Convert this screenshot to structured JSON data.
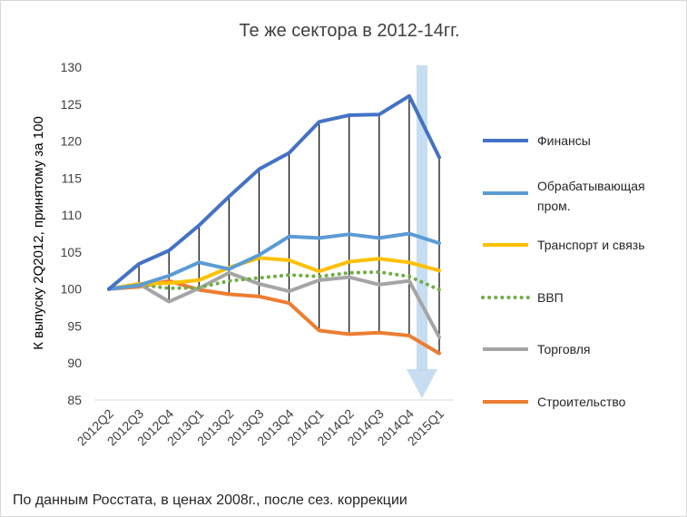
{
  "chart_data": {
    "type": "line",
    "title": "Те же сектора в 2012-14гг.",
    "ylabel": "К выпуску 2Q2012, принятому за 100",
    "xlabel": "",
    "ylim": [
      85,
      130
    ],
    "yticks": [
      85,
      90,
      95,
      100,
      105,
      110,
      115,
      120,
      125,
      130
    ],
    "categories": [
      "2012Q2",
      "2012Q3",
      "2012Q4",
      "2013Q1",
      "2013Q2",
      "2013Q3",
      "2013Q4",
      "2014Q1",
      "2014Q2",
      "2014Q3",
      "2014Q4",
      "2015Q1"
    ],
    "grid": false,
    "legend_position": "right",
    "series": [
      {
        "name": "Финансы",
        "color": "#4472c4",
        "style": "solid",
        "values": [
          100,
          103.4,
          105.2,
          108.6,
          112.5,
          116.2,
          118.4,
          122.6,
          123.5,
          123.6,
          126.1,
          117.8
        ]
      },
      {
        "name": "Обрабатывающая пром.",
        "color": "#5b9bd5",
        "style": "solid",
        "values": [
          100,
          100.5,
          101.8,
          103.6,
          102.7,
          104.6,
          107.1,
          106.9,
          107.4,
          106.9,
          107.5,
          106.2
        ]
      },
      {
        "name": "Транспорт и связь",
        "color": "#ffc000",
        "style": "solid",
        "values": [
          100,
          100.7,
          100.8,
          101.2,
          102.9,
          104.2,
          103.9,
          102.4,
          103.7,
          104.1,
          103.6,
          102.5
        ]
      },
      {
        "name": "ВВП",
        "color": "#70ad47",
        "style": "dotted",
        "values": [
          100,
          100.6,
          100.1,
          100.2,
          101.1,
          101.5,
          101.9,
          101.7,
          102.2,
          102.3,
          101.7,
          99.9
        ]
      },
      {
        "name": "Торговля",
        "color": "#a5a5a5",
        "style": "solid",
        "values": [
          100,
          100.7,
          98.3,
          100.1,
          102.2,
          100.7,
          99.7,
          101.2,
          101.6,
          100.6,
          101.1,
          93.5
        ]
      },
      {
        "name": "Строительство",
        "color": "#ed7d31",
        "style": "solid",
        "values": [
          100,
          100.3,
          101.1,
          99.9,
          99.3,
          99.0,
          98.1,
          94.4,
          93.9,
          94.1,
          93.7,
          91.3
        ]
      }
    ],
    "dropline_color": "#000000",
    "arrow_color": "#bdd7ee",
    "footnote": "По данным Росстата, в ценах 2008г., после сез. коррекции"
  }
}
